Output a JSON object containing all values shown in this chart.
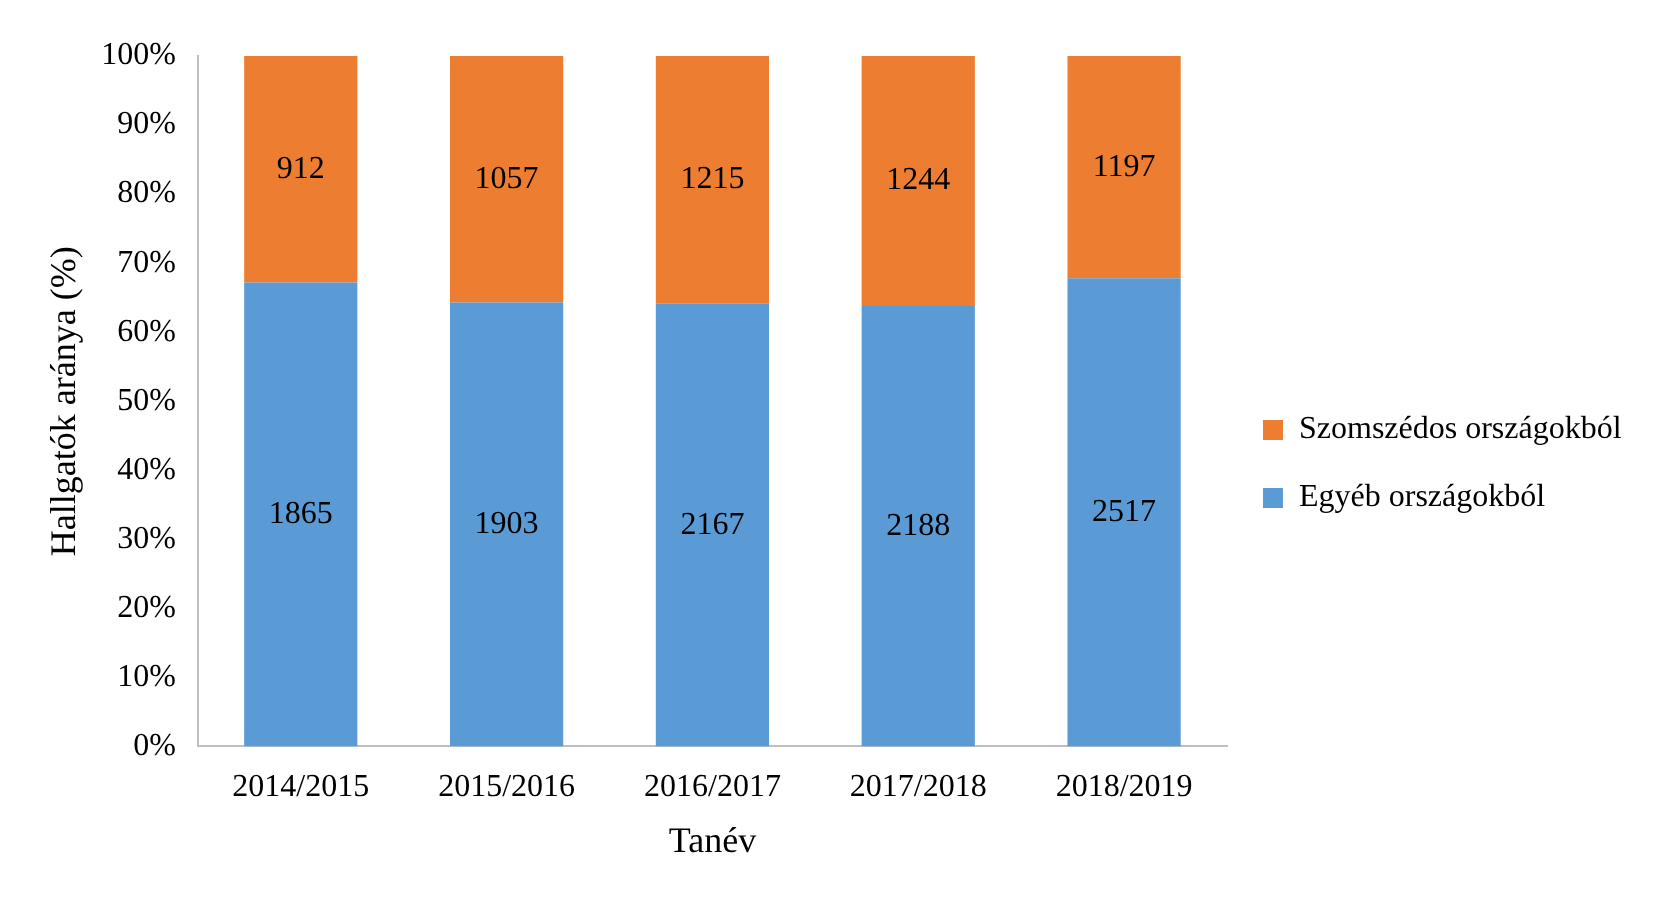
{
  "chart_data": {
    "type": "bar",
    "stacked": true,
    "categories": [
      "2014/2015",
      "2015/2016",
      "2016/2017",
      "2017/2018",
      "2018/2019"
    ],
    "series": [
      {
        "name": "Egyéb országokból",
        "color": "#5b9bd5",
        "values": [
          67.2,
          64.3,
          64.1,
          63.8,
          67.8
        ]
      },
      {
        "name": "Szomszédos országokból",
        "color": "#ed7d31",
        "values": [
          32.8,
          35.7,
          35.9,
          36.2,
          32.2
        ]
      }
    ],
    "annotations": [
      "1865",
      "1903",
      "2167",
      "2188",
      "2517",
      "912",
      "1057",
      "1215",
      "1244",
      "1197"
    ],
    "ylim": [
      0,
      100
    ],
    "yticks": [
      {
        "value": 0,
        "label": "0%"
      },
      {
        "value": 10,
        "label": "10%"
      },
      {
        "value": 20,
        "label": "20%"
      },
      {
        "value": 30,
        "label": "30%"
      },
      {
        "value": 40,
        "label": "40%"
      },
      {
        "value": 50,
        "label": "50%"
      },
      {
        "value": 60,
        "label": "60%"
      },
      {
        "value": 70,
        "label": "70%"
      },
      {
        "value": 80,
        "label": "80%"
      },
      {
        "value": 90,
        "label": "90%"
      },
      {
        "value": 100,
        "label": "100%"
      }
    ],
    "xlabel": "Tanév",
    "ylabel": "Hallgatók aránya (%)",
    "legend": "right",
    "grid": false
  }
}
